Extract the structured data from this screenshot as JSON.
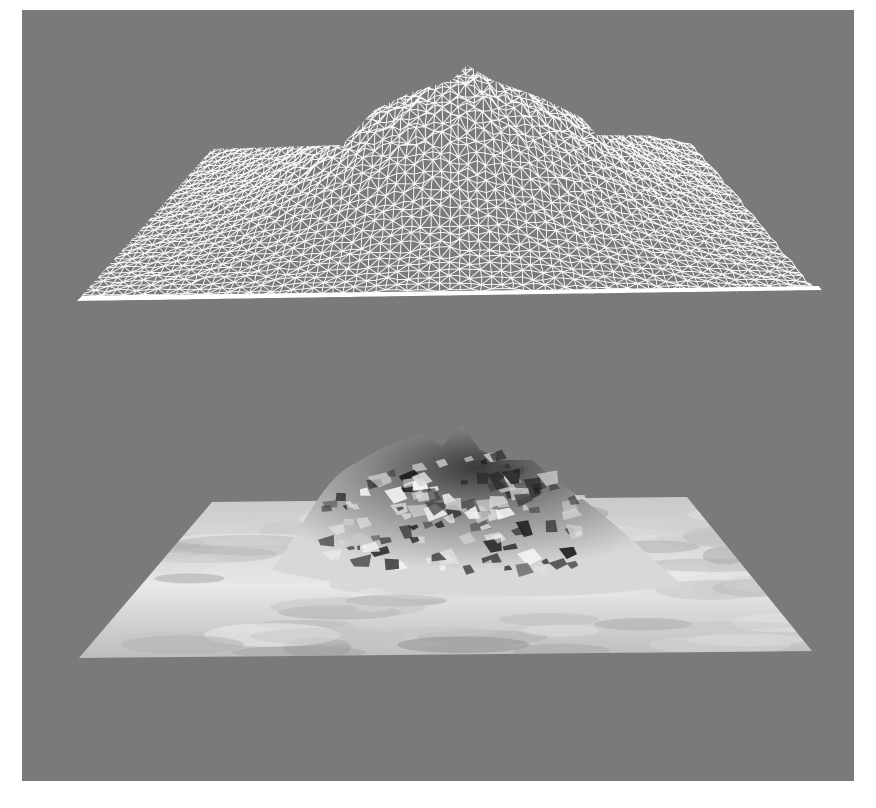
{
  "colors": {
    "background": "#7a7a7a",
    "wireframe": "#ffffff",
    "surface_light": "#f2f2f2",
    "surface_mid": "#b8b8b8",
    "surface_dark": "#2a2a2a"
  },
  "panels": [
    {
      "id": "wireframe-terrain",
      "render_style": "wireframe mesh"
    },
    {
      "id": "shaded-terrain",
      "render_style": "shaded surface"
    }
  ]
}
